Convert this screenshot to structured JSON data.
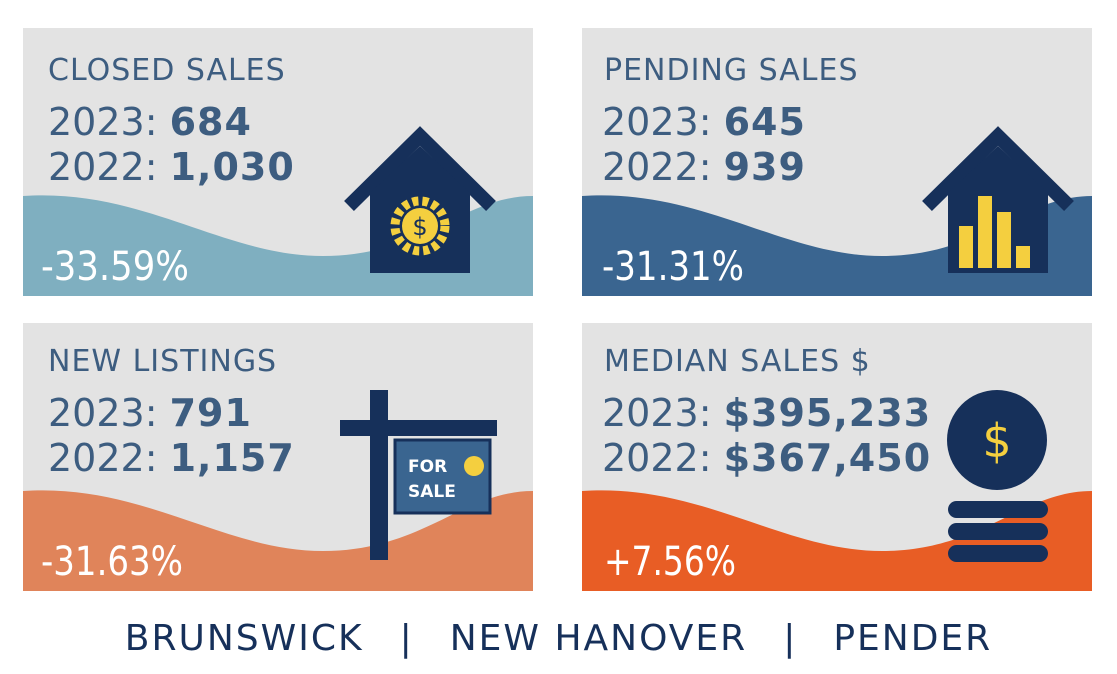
{
  "cards": [
    {
      "title": "CLOSED SALES",
      "lines": [
        {
          "label": "2023:",
          "value": "684"
        },
        {
          "label": "2022:",
          "value": "1,030"
        }
      ],
      "change": "-33.59%",
      "icon_text": "$"
    },
    {
      "title": "PENDING SALES",
      "lines": [
        {
          "label": "2023:",
          "value": "645"
        },
        {
          "label": "2022:",
          "value": "939"
        }
      ],
      "change": "-31.31%"
    },
    {
      "title": "NEW LISTINGS",
      "lines": [
        {
          "label": "2023:",
          "value": "791"
        },
        {
          "label": "2022:",
          "value": "1,157"
        }
      ],
      "change": "-31.63%",
      "icon_text": [
        "FOR",
        "SALE"
      ]
    },
    {
      "title": "MEDIAN SALES $",
      "lines": [
        {
          "label": "2023:",
          "value": "$395,233"
        },
        {
          "label": "2022:",
          "value": "$367,450"
        }
      ],
      "change": "+7.56%",
      "icon_text": "$"
    }
  ],
  "footer": {
    "items": [
      "BRUNSWICK",
      "NEW HANOVER",
      "PENDER"
    ],
    "separator": "|"
  }
}
